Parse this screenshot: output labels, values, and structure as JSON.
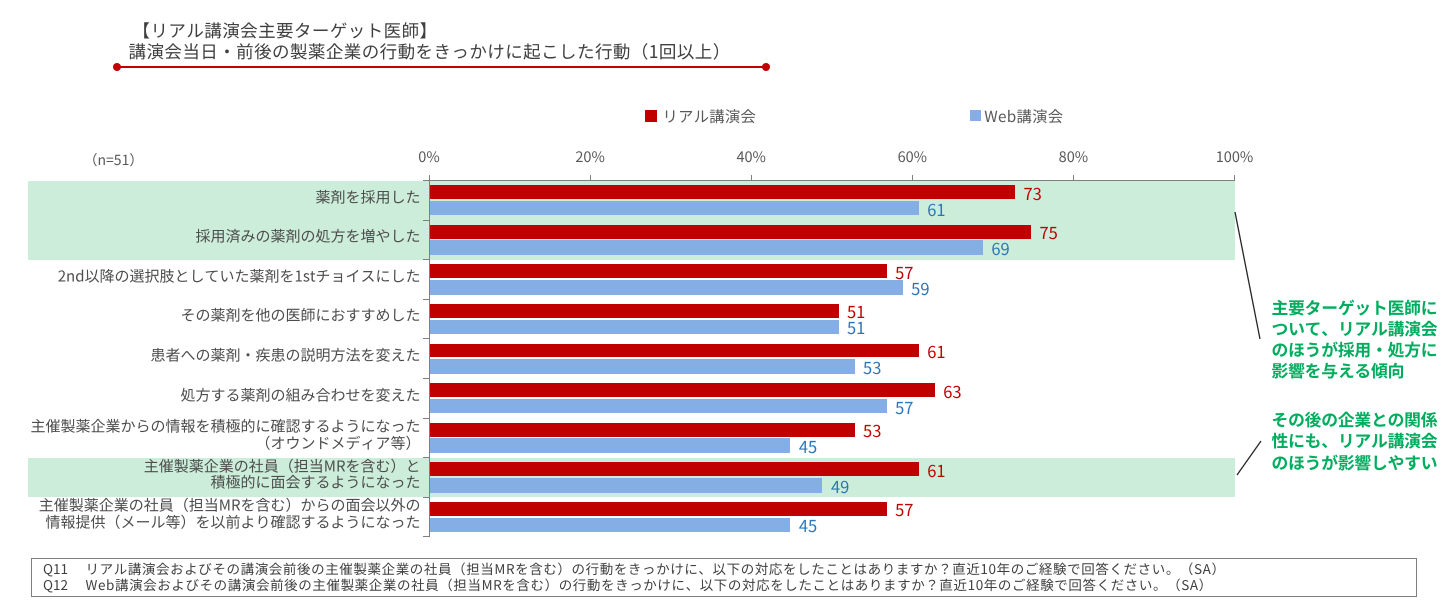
{
  "header": {
    "title_line1": "【リアル講演会主要ターゲット医師】",
    "title_line2": "講演会当日・前後の製薬企業の行動をきっかけに起こした行動（1回以上）",
    "underline_color": "#C00000"
  },
  "sample_size_label": "（n=51）",
  "legend": [
    {
      "label": "リアル講演会",
      "color": "#C00000"
    },
    {
      "label": "Web講演会",
      "color": "#85AEE4"
    }
  ],
  "chart_data": {
    "type": "bar",
    "orientation": "horizontal",
    "title": "講演会当日・前後の製薬企業の行動をきっかけに起こした行動（1回以上）",
    "xlabel": "",
    "ylabel": "",
    "x_axis": {
      "min": 0,
      "max": 100,
      "tick_step": 20,
      "ticks": [
        "0%",
        "20%",
        "40%",
        "60%",
        "80%",
        "100%"
      ]
    },
    "grid": false,
    "legend_position": "top",
    "axis_color": "#7F7F7F",
    "categories": [
      {
        "lines": [
          "薬剤を採用した"
        ],
        "highlight": true
      },
      {
        "lines": [
          "採用済みの薬剤の処方を増やした"
        ],
        "highlight": true
      },
      {
        "lines": [
          "2nd以降の選択肢としていた薬剤を1stチョイスにした"
        ],
        "highlight": false
      },
      {
        "lines": [
          "その薬剤を他の医師におすすめした"
        ],
        "highlight": false
      },
      {
        "lines": [
          "患者への薬剤・疾患の説明方法を変えた"
        ],
        "highlight": false
      },
      {
        "lines": [
          "処方する薬剤の組み合わせを変えた"
        ],
        "highlight": false
      },
      {
        "lines": [
          "主催製薬企業からの情報を積極的に確認するようになった",
          "（オウンドメディア等）"
        ],
        "highlight": false
      },
      {
        "lines": [
          "主催製薬企業の社員（担当MRを含む）と",
          "積極的に面会するようになった"
        ],
        "highlight": true
      },
      {
        "lines": [
          "主催製薬企業の社員（担当MRを含む）からの面会以外の",
          "情報提供（メール等）を以前より確認するようになった"
        ],
        "highlight": false
      }
    ],
    "series": [
      {
        "name": "リアル講演会",
        "color": "#C00000",
        "label_color": "#C00000",
        "values": [
          73,
          75,
          57,
          51,
          61,
          63,
          53,
          61,
          57
        ]
      },
      {
        "name": "Web講演会",
        "color": "#85AEE4",
        "label_color": "#2E75B6",
        "values": [
          61,
          69,
          59,
          51,
          53,
          57,
          45,
          49,
          45
        ]
      }
    ],
    "highlight_color": "#CCEDDA"
  },
  "annotations": [
    {
      "lines": [
        "主要ターゲット医師に",
        "ついて、リアル講演会",
        "のほうが採用・処方に",
        "影響を与える傾向"
      ],
      "color": "#00AD5E"
    },
    {
      "lines": [
        "その後の企業との関係",
        "性にも、リアル講演会",
        "のほうが影響しやすい"
      ],
      "color": "#00AD5E"
    }
  ],
  "footnote": {
    "items": [
      {
        "label": "Q11",
        "text": "リアル講演会およびその講演会前後の主催製薬企業の社員（担当MRを含む）の行動をきっかけに、以下の対応をしたことはありますか？直近10年のご経験で回答ください。（SA）"
      },
      {
        "label": "Q12",
        "text": "Web講演会およびその講演会前後の主催製薬企業の社員（担当MRを含む）の行動をきっかけに、以下の対応をしたことはありますか？直近10年のご経験で回答ください。（SA）"
      }
    ]
  }
}
